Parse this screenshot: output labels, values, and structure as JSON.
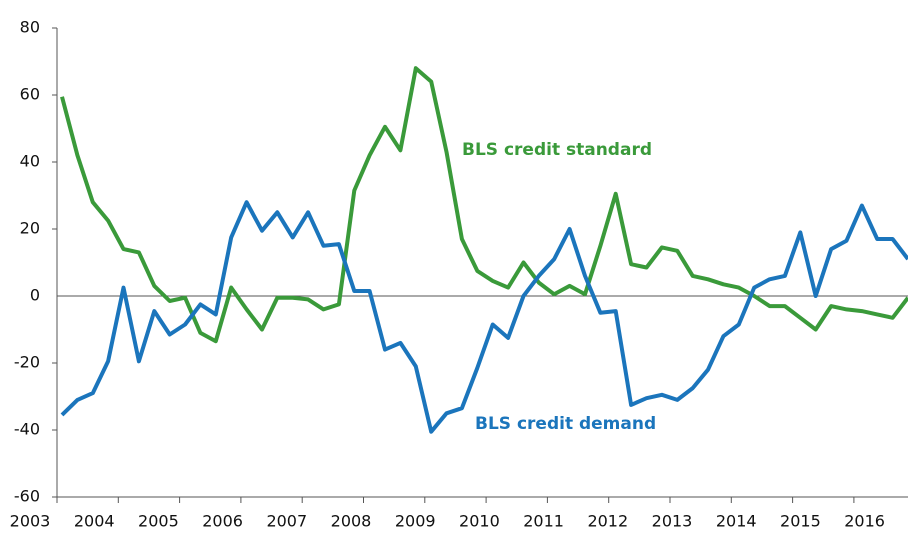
{
  "chart_data": {
    "type": "line",
    "categories": [
      "2003",
      null,
      null,
      null,
      "2004",
      null,
      null,
      null,
      "2005",
      null,
      null,
      null,
      "2006",
      null,
      null,
      null,
      "2007",
      null,
      null,
      null,
      "2008",
      null,
      null,
      null,
      "2009",
      null,
      null,
      null,
      "2010",
      null,
      null,
      null,
      "2011",
      null,
      null,
      null,
      "2012",
      null,
      null,
      null,
      "2013",
      null,
      null,
      null,
      "2014",
      null,
      null,
      null,
      "2015",
      null,
      null,
      null,
      "2016",
      null,
      null,
      null
    ],
    "series": [
      {
        "name": "BLS credit standard",
        "color": "#3a9a3a",
        "values": [
          59.5,
          42,
          28,
          22.5,
          14,
          13,
          3,
          -1.5,
          -0.5,
          -11,
          -13.5,
          2.5,
          -4,
          -10,
          -0.5,
          -0.5,
          -1,
          -4,
          -2.5,
          31.5,
          42,
          50.5,
          43.5,
          68,
          64,
          43,
          17,
          7.5,
          4.5,
          2.5,
          10,
          4,
          0.5,
          3,
          0.5,
          15,
          30.5,
          9.5,
          8.5,
          14.5,
          13.5,
          6,
          5,
          3.5,
          2.5,
          0,
          -3,
          -3,
          -6.5,
          -10,
          -3,
          -4,
          -4.5,
          -5.5,
          -6.5,
          -0.5
        ]
      },
      {
        "name": "BLS credit demand",
        "color": "#1b75bc",
        "values": [
          -35.5,
          -31,
          -29,
          -19.5,
          2.5,
          -19.5,
          -4.5,
          -11.5,
          -8.5,
          -2.5,
          -5.5,
          17.5,
          28,
          19.5,
          25,
          17.5,
          25,
          15,
          15.5,
          1.5,
          1.5,
          -16,
          -14,
          -21,
          -40.5,
          -35,
          -33.5,
          -21.5,
          -8.5,
          -12.5,
          0,
          6,
          11,
          20,
          6,
          -5,
          -4.5,
          -32.5,
          -30.5,
          -29.5,
          -31,
          -27.5,
          -22,
          -12,
          -8.5,
          2.5,
          5,
          6,
          19,
          0,
          14,
          16.5,
          27,
          17,
          17,
          11
        ]
      }
    ],
    "ylim": [
      -60,
      80
    ],
    "yticks": [
      -60,
      -40,
      -20,
      0,
      20,
      40,
      60,
      80
    ],
    "grid": false
  }
}
